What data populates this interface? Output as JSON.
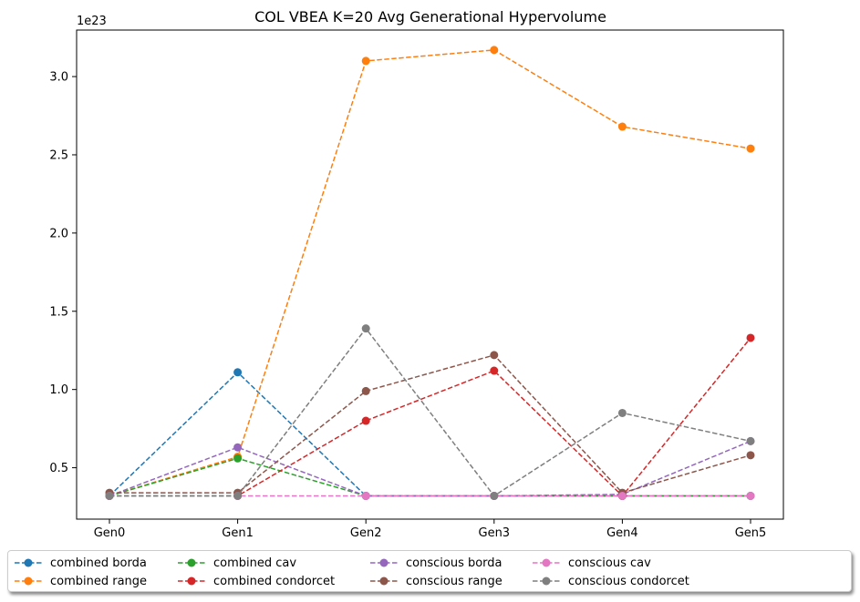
{
  "chart_data": {
    "type": "line",
    "title": "COL VBEA K=20 Avg Generational Hypervolume",
    "xlabel": "",
    "ylabel": "",
    "y_offset_label": "1e23",
    "categories": [
      "Gen0",
      "Gen1",
      "Gen2",
      "Gen3",
      "Gen4",
      "Gen5"
    ],
    "yticks": [
      0.5,
      1.0,
      1.5,
      2.0,
      2.5,
      3.0
    ],
    "ytick_labels": [
      "0.5",
      "1.0",
      "1.5",
      "2.0",
      "2.5",
      "3.0"
    ],
    "ylim": [
      0.17,
      3.3
    ],
    "grid": false,
    "legend_position": "below",
    "series": [
      {
        "name": "combined borda",
        "color": "#1f77b4",
        "values": [
          0.32,
          1.11,
          0.32,
          0.32,
          0.32,
          0.32
        ]
      },
      {
        "name": "combined range",
        "color": "#ff7f0e",
        "values": [
          0.32,
          0.57,
          3.1,
          3.17,
          2.68,
          2.54
        ]
      },
      {
        "name": "combined cav",
        "color": "#2ca02c",
        "values": [
          0.32,
          0.56,
          0.32,
          0.32,
          0.32,
          0.32
        ]
      },
      {
        "name": "combined condorcet",
        "color": "#d62728",
        "values": [
          0.32,
          0.32,
          0.8,
          1.12,
          0.32,
          1.33
        ]
      },
      {
        "name": "conscious borda",
        "color": "#9467bd",
        "values": [
          0.32,
          0.63,
          0.32,
          0.32,
          0.33,
          0.67
        ]
      },
      {
        "name": "conscious range",
        "color": "#8c564b",
        "values": [
          0.34,
          0.34,
          0.99,
          1.22,
          0.34,
          0.58
        ]
      },
      {
        "name": "conscious cav",
        "color": "#e377c2",
        "values": [
          0.32,
          0.32,
          0.32,
          0.32,
          0.32,
          0.32
        ]
      },
      {
        "name": "conscious condorcet",
        "color": "#7f7f7f",
        "values": [
          0.32,
          0.32,
          1.39,
          0.32,
          0.85,
          0.67
        ]
      }
    ]
  }
}
